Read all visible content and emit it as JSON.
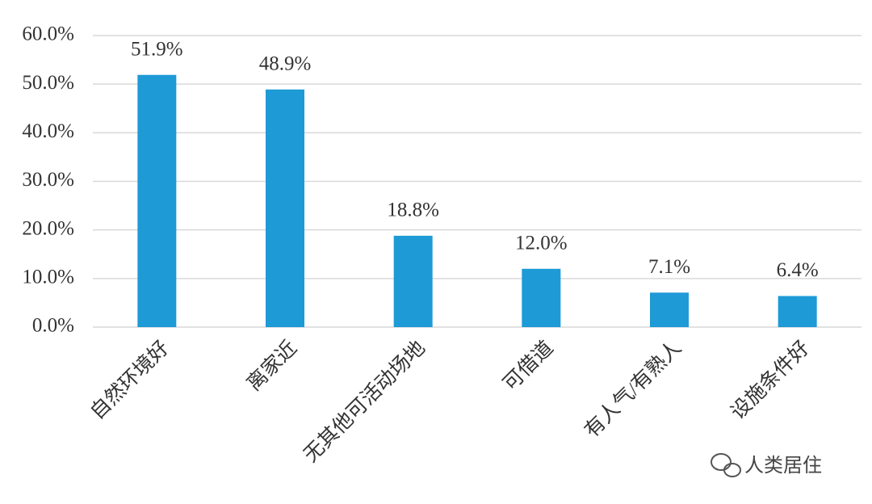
{
  "chart_data": {
    "type": "bar",
    "categories": [
      "自然环境好",
      "离家近",
      "无其他可活动场地",
      "可借道",
      "有人气/有熟人",
      "设施条件好"
    ],
    "values": [
      51.9,
      48.9,
      18.8,
      12.0,
      7.1,
      6.4
    ],
    "value_labels": [
      "51.9%",
      "48.9%",
      "18.8%",
      "12.0%",
      "7.1%",
      "6.4%"
    ],
    "color": "#1e9ad6",
    "ylim": [
      0,
      60
    ],
    "yticks": [
      {
        "value": 0,
        "label": "0.0%"
      },
      {
        "value": 10,
        "label": "10.0%"
      },
      {
        "value": 20,
        "label": "20.0%"
      },
      {
        "value": 30,
        "label": "30.0%"
      },
      {
        "value": 40,
        "label": "40.0%"
      },
      {
        "value": 50,
        "label": "50.0%"
      },
      {
        "value": 60,
        "label": "60.0%"
      }
    ],
    "grid": true,
    "watermark": "人类居住"
  }
}
